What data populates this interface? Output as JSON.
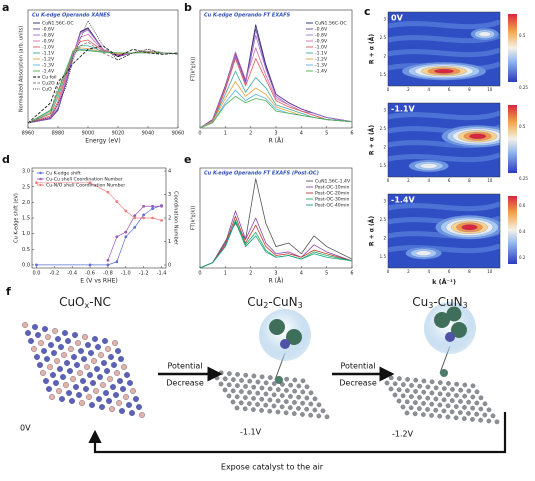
{
  "chart_data": [
    {
      "type": "line",
      "label": "a",
      "title": "Cu K-edge  Operando XANES",
      "xlabel": "Energy (eV)",
      "ylabel": "Normalized Absorption (arb. units)",
      "x": [
        8960,
        8975,
        8980,
        8985,
        8990,
        8995,
        9000,
        9010,
        9020,
        9030,
        9040,
        9050,
        9060
      ],
      "xlim": [
        8960,
        9060
      ],
      "xticks": [
        8960,
        8980,
        9000,
        9020,
        9040,
        9060
      ],
      "ylim": [
        -0.05,
        1.6
      ],
      "legend": "upper left",
      "series": [
        {
          "name": "CuN1.56C-OC",
          "color": "#1f2a6b",
          "values": [
            0.02,
            0.08,
            0.2,
            0.55,
            0.95,
            1.3,
            1.35,
            1.05,
            0.95,
            1.0,
            1.02,
            1.0,
            0.99
          ]
        },
        {
          "name": "-0.6V",
          "color": "#6a3d9a",
          "values": [
            0.02,
            0.08,
            0.21,
            0.56,
            0.96,
            1.29,
            1.34,
            1.05,
            0.95,
            1.0,
            1.02,
            1.0,
            0.99
          ]
        },
        {
          "name": "-0.8V",
          "color": "#9e6ad1",
          "values": [
            0.02,
            0.09,
            0.23,
            0.58,
            0.98,
            1.27,
            1.32,
            1.05,
            0.96,
            1.0,
            1.02,
            1.0,
            0.99
          ]
        },
        {
          "name": "-0.9V",
          "color": "#d36fb0",
          "values": [
            0.02,
            0.1,
            0.27,
            0.62,
            1.0,
            1.22,
            1.26,
            1.04,
            0.97,
            1.0,
            1.01,
            1.0,
            0.99
          ]
        },
        {
          "name": "-1.0V",
          "color": "#e05a5a",
          "values": [
            0.02,
            0.12,
            0.32,
            0.66,
            1.02,
            1.16,
            1.18,
            1.03,
            0.98,
            1.0,
            1.01,
            1.0,
            0.99
          ]
        },
        {
          "name": "-1.1V",
          "color": "#3aa8a0",
          "values": [
            0.02,
            0.15,
            0.38,
            0.7,
            1.03,
            1.1,
            1.1,
            1.02,
            0.99,
            1.0,
            1.01,
            1.0,
            0.99
          ]
        },
        {
          "name": "-1.2V",
          "color": "#e6a23c",
          "values": [
            0.02,
            0.17,
            0.42,
            0.72,
            1.03,
            1.07,
            1.06,
            1.01,
            0.99,
            1.0,
            1.01,
            1.0,
            0.99
          ]
        },
        {
          "name": "-1.3V",
          "color": "#56b4e9",
          "values": [
            0.02,
            0.19,
            0.45,
            0.74,
            1.02,
            1.05,
            1.04,
            1.01,
            1.0,
            1.0,
            1.0,
            1.0,
            0.99
          ]
        },
        {
          "name": "-1.4V",
          "color": "#4caf50",
          "values": [
            0.02,
            0.2,
            0.47,
            0.75,
            1.02,
            1.04,
            1.03,
            1.01,
            1.0,
            1.0,
            1.0,
            1.0,
            0.99
          ]
        },
        {
          "name": "Cu foil",
          "color": "#000000",
          "dash": "dashed",
          "values": [
            0.02,
            0.3,
            0.6,
            0.7,
            0.85,
            0.95,
            1.05,
            1.1,
            0.95,
            1.05,
            1.0,
            0.98,
            1.0
          ]
        },
        {
          "name": "Cu2O",
          "color": "#777777",
          "dash": "dashed",
          "values": [
            0.02,
            0.15,
            0.55,
            0.7,
            0.95,
            1.1,
            1.15,
            1.0,
            0.9,
            1.0,
            1.05,
            1.0,
            0.98
          ]
        },
        {
          "name": "CuO",
          "color": "#333333",
          "dash": "dotted",
          "values": [
            0.02,
            0.1,
            0.3,
            0.5,
            0.9,
            1.2,
            1.45,
            1.1,
            0.9,
            1.0,
            1.05,
            0.98,
            1.0
          ]
        }
      ]
    },
    {
      "type": "line",
      "label": "b",
      "title": "Cu K-edge  Operando FT EXAFS",
      "xlabel": "R (Å)",
      "ylabel": "FT(k³χ(k))",
      "x": [
        0,
        0.5,
        1,
        1.4,
        1.8,
        2.2,
        2.6,
        3,
        3.5,
        4,
        4.5,
        5,
        6
      ],
      "xlim": [
        0,
        6
      ],
      "xticks": [
        0,
        1,
        2,
        3,
        4,
        5,
        6
      ],
      "ylim": [
        0,
        5.6
      ],
      "legend": "upper right",
      "series": [
        {
          "name": "CuN1.56C-OC",
          "color": "#1f2a6b",
          "values": [
            0,
            0.4,
            2.0,
            3.6,
            2.2,
            4.9,
            3.0,
            1.6,
            1.2,
            0.9,
            0.7,
            0.5,
            0.3
          ]
        },
        {
          "name": "-0.6V",
          "color": "#6a3d9a",
          "values": [
            0,
            0.4,
            2.0,
            3.5,
            2.2,
            4.7,
            2.9,
            1.6,
            1.2,
            0.9,
            0.7,
            0.5,
            0.3
          ]
        },
        {
          "name": "-0.8V",
          "color": "#9e6ad1",
          "values": [
            0,
            0.35,
            1.9,
            3.4,
            2.1,
            4.4,
            2.8,
            1.5,
            1.1,
            0.8,
            0.7,
            0.5,
            0.3
          ]
        },
        {
          "name": "-0.9V",
          "color": "#d36fb0",
          "values": [
            0,
            0.35,
            1.9,
            3.6,
            2.3,
            3.8,
            2.5,
            1.4,
            1.1,
            0.8,
            0.6,
            0.4,
            0.3
          ]
        },
        {
          "name": "-1.0V",
          "color": "#e05a5a",
          "values": [
            0,
            0.3,
            1.8,
            3.3,
            2.0,
            3.3,
            2.3,
            1.3,
            1.0,
            0.8,
            0.6,
            0.4,
            0.3
          ]
        },
        {
          "name": "-1.1V",
          "color": "#3aa8a0",
          "values": [
            0,
            0.3,
            1.6,
            2.7,
            1.7,
            2.4,
            1.9,
            1.1,
            0.9,
            0.7,
            0.5,
            0.4,
            0.3
          ]
        },
        {
          "name": "-1.2V",
          "color": "#e6a23c",
          "values": [
            0,
            0.3,
            1.4,
            2.2,
            1.5,
            1.9,
            1.6,
            1.0,
            0.8,
            0.6,
            0.5,
            0.4,
            0.3
          ]
        },
        {
          "name": "-1.3V",
          "color": "#56b4e9",
          "values": [
            0,
            0.25,
            1.2,
            1.8,
            1.3,
            1.6,
            1.4,
            0.9,
            0.7,
            0.6,
            0.5,
            0.4,
            0.3
          ]
        },
        {
          "name": "-1.4V",
          "color": "#4caf50",
          "values": [
            0,
            0.25,
            1.1,
            1.5,
            1.2,
            1.4,
            1.3,
            0.8,
            0.7,
            0.6,
            0.5,
            0.4,
            0.3
          ]
        }
      ]
    },
    {
      "type": "line",
      "label": "d",
      "xlabel": "E (V vs RHE)",
      "ylabel": "Cu K-edge shift (eV)",
      "y2label": "Coordination Number",
      "x": [
        0,
        -0.6,
        -0.8,
        -0.9,
        -1.0,
        -1.1,
        -1.2,
        -1.3,
        -1.4
      ],
      "xlim": [
        0.05,
        -1.45
      ],
      "xticks": [
        {
          "value": 0,
          "label": "0.0"
        },
        -0.2,
        -0.4,
        -0.6,
        -0.8,
        {
          "value": -1,
          "label": "-1.0"
        },
        -1.2,
        -1.4
      ],
      "ylim": [
        -0.1,
        3.1
      ],
      "yticks": [
        {
          "value": 0,
          "label": "0.0"
        },
        0.5,
        {
          "value": 1,
          "label": "1.0"
        },
        1.5,
        {
          "value": 2,
          "label": "2.0"
        },
        2.5,
        {
          "value": 3,
          "label": "3.0"
        }
      ],
      "y2lim": [
        -0.13,
        4.13
      ],
      "y2ticks": [
        0,
        1,
        2,
        3,
        4
      ],
      "legend": "upper left",
      "markers": true,
      "series": [
        {
          "name": "Cu K-edge shift",
          "color": "#5b6fd6",
          "values": [
            0,
            0,
            0,
            0.1,
            0.9,
            1.2,
            1.6,
            1.8,
            1.9
          ]
        },
        {
          "name": "Cu-Cu  shell Coordination Number",
          "color": "#9b59b6",
          "axis": "y2",
          "values": [
            null,
            null,
            0.2,
            1.2,
            1.4,
            2.1,
            2.5,
            2.5,
            2.5
          ]
        },
        {
          "name": "Cu-N/O shell Coordination Number",
          "color": "#f08080",
          "axis": "y2",
          "values": [
            3.5,
            3.5,
            3.1,
            2.7,
            2.3,
            2.0,
            2.0,
            2.0,
            1.9
          ]
        }
      ]
    },
    {
      "type": "line",
      "label": "e",
      "title": "Cu K-edge  Operando FT EXAFS (Post-OC)",
      "xlabel": "R (Å)",
      "ylabel": "FT(k³χ(k))",
      "x": [
        0,
        0.5,
        1,
        1.4,
        1.8,
        2.2,
        2.6,
        3,
        3.5,
        4,
        4.5,
        5,
        6
      ],
      "xlim": [
        0,
        6
      ],
      "xticks": [
        0,
        1,
        2,
        3,
        4,
        5,
        6
      ],
      "ylim": [
        0,
        5.6
      ],
      "legend": "upper right",
      "series": [
        {
          "name": "CuN1.56C-1.4V",
          "color": "#555555",
          "values": [
            0,
            0.3,
            1.5,
            2.5,
            1.6,
            5.0,
            2.5,
            1.2,
            1.4,
            0.8,
            1.8,
            1.2,
            0.5
          ]
        },
        {
          "name": "Post-OC-10min",
          "color": "#8e44ad",
          "values": [
            0,
            0.3,
            1.4,
            3.2,
            1.6,
            2.8,
            1.4,
            0.8,
            0.9,
            0.6,
            1.3,
            0.9,
            0.4
          ]
        },
        {
          "name": "Post-OC-20min",
          "color": "#c0392b",
          "values": [
            0,
            0.3,
            1.3,
            2.9,
            1.4,
            2.4,
            1.2,
            0.7,
            0.8,
            0.6,
            1.0,
            0.8,
            0.4
          ]
        },
        {
          "name": "Post-OC-30min",
          "color": "#27ae60",
          "values": [
            0,
            0.3,
            1.2,
            2.7,
            1.3,
            2.0,
            1.0,
            0.6,
            0.7,
            0.5,
            0.9,
            0.7,
            0.4
          ]
        },
        {
          "name": "Post-OC-40min",
          "color": "#16a085",
          "values": [
            0,
            0.3,
            1.2,
            2.6,
            1.2,
            1.8,
            0.9,
            0.6,
            0.7,
            0.5,
            0.8,
            0.6,
            0.4
          ]
        }
      ]
    }
  ],
  "contour_maps": {
    "label": "c",
    "ylabel": "R + α (Å)",
    "xlabel": "k (Å⁻¹)",
    "kticks": [
      0,
      2,
      4,
      6,
      8,
      10
    ],
    "rticks": [
      1.5,
      2,
      2.5,
      3
    ],
    "maps": [
      {
        "potential": "0V",
        "colorbar_ticks": [
          "0.5",
          "0.25"
        ]
      },
      {
        "potential": "-1.1V",
        "colorbar_ticks": [
          "0.5",
          "0.25"
        ]
      },
      {
        "potential": "-1.4V",
        "colorbar_ticks": [
          "0.6",
          "0.4",
          "0.2"
        ]
      }
    ]
  },
  "diagram": {
    "label": "f",
    "structures": [
      {
        "name": [
          "CuO",
          "x",
          "-NC"
        ],
        "potential": "0V"
      },
      {
        "name": [
          "Cu",
          "2",
          "-CuN",
          "3"
        ],
        "potential": "-1.1V"
      },
      {
        "name": [
          "Cu",
          "3",
          "-CuN",
          "3"
        ],
        "potential": "-1.2V"
      }
    ],
    "arrows": [
      [
        "Potential",
        "Decrease"
      ],
      [
        "Potential",
        "Decrease"
      ]
    ],
    "return": "Expose catalyst to the air"
  }
}
